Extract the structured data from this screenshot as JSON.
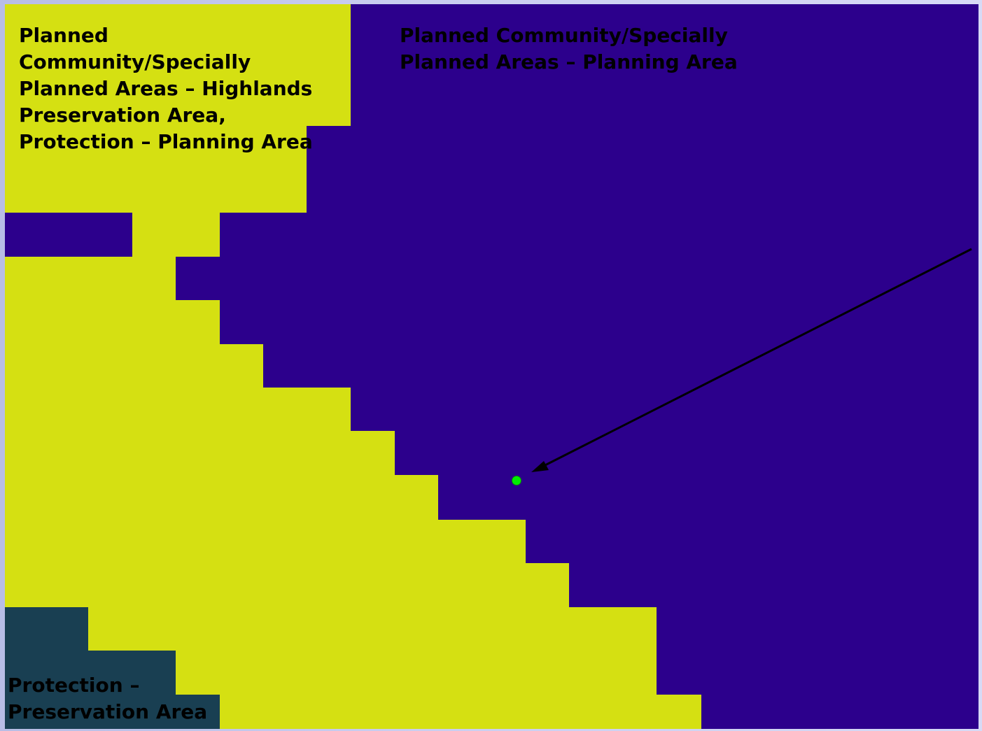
{
  "regions": {
    "highlands_planning": {
      "label": "Planned Community/Specially Planned Areas – Highlands Preservation Area, Protection – Planning Area",
      "color": "#d5e012"
    },
    "planning_area": {
      "label": "Planned Community/Specially Planned Areas – Planning Area",
      "color": "#2c008c"
    },
    "preservation_area": {
      "label": "Protection – Preservation Area",
      "color": "#193f52"
    }
  },
  "marker": {
    "color": "#00ee00"
  },
  "colors": {
    "background": "#c3c7ee",
    "arrow": "#000000"
  }
}
